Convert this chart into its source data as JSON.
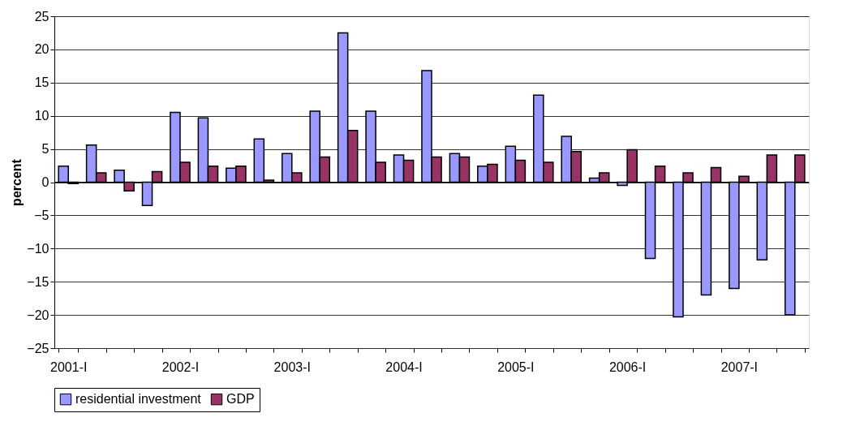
{
  "chart_data": {
    "type": "bar",
    "ylabel": "percent",
    "categories": [
      "2001-I",
      null,
      null,
      null,
      "2002-I",
      null,
      null,
      null,
      "2003-I",
      null,
      null,
      null,
      "2004-I",
      null,
      null,
      null,
      "2005-I",
      null,
      null,
      null,
      "2006-I",
      null,
      null,
      null,
      "2007-I",
      null,
      null
    ],
    "series": [
      {
        "name": "residential investment",
        "color": "#9999ff",
        "values": [
          2.4,
          5.6,
          1.8,
          -3.5,
          10.5,
          9.7,
          2.1,
          6.5,
          4.3,
          10.7,
          22.5,
          10.7,
          4.1,
          16.8,
          4.3,
          2.4,
          5.4,
          13.1,
          6.9,
          0.6,
          -0.5,
          -11.5,
          -20.3,
          -17.0,
          -16.0,
          -11.7,
          -20.0
        ]
      },
      {
        "name": "GDP",
        "color": "#993366",
        "values": [
          -0.2,
          1.4,
          -1.3,
          1.6,
          3.0,
          2.4,
          2.4,
          0.3,
          1.4,
          3.8,
          7.8,
          3.0,
          3.3,
          3.8,
          3.8,
          2.7,
          3.3,
          3.0,
          4.6,
          1.4,
          4.9,
          2.4,
          1.4,
          2.2,
          0.9,
          4.1,
          4.1
        ]
      }
    ],
    "ylim": [
      -25,
      25
    ],
    "yticks": [
      -25,
      -20,
      -15,
      -10,
      -5,
      0,
      5,
      10,
      15,
      20,
      25
    ],
    "grid": "y",
    "legend": "bottom"
  }
}
